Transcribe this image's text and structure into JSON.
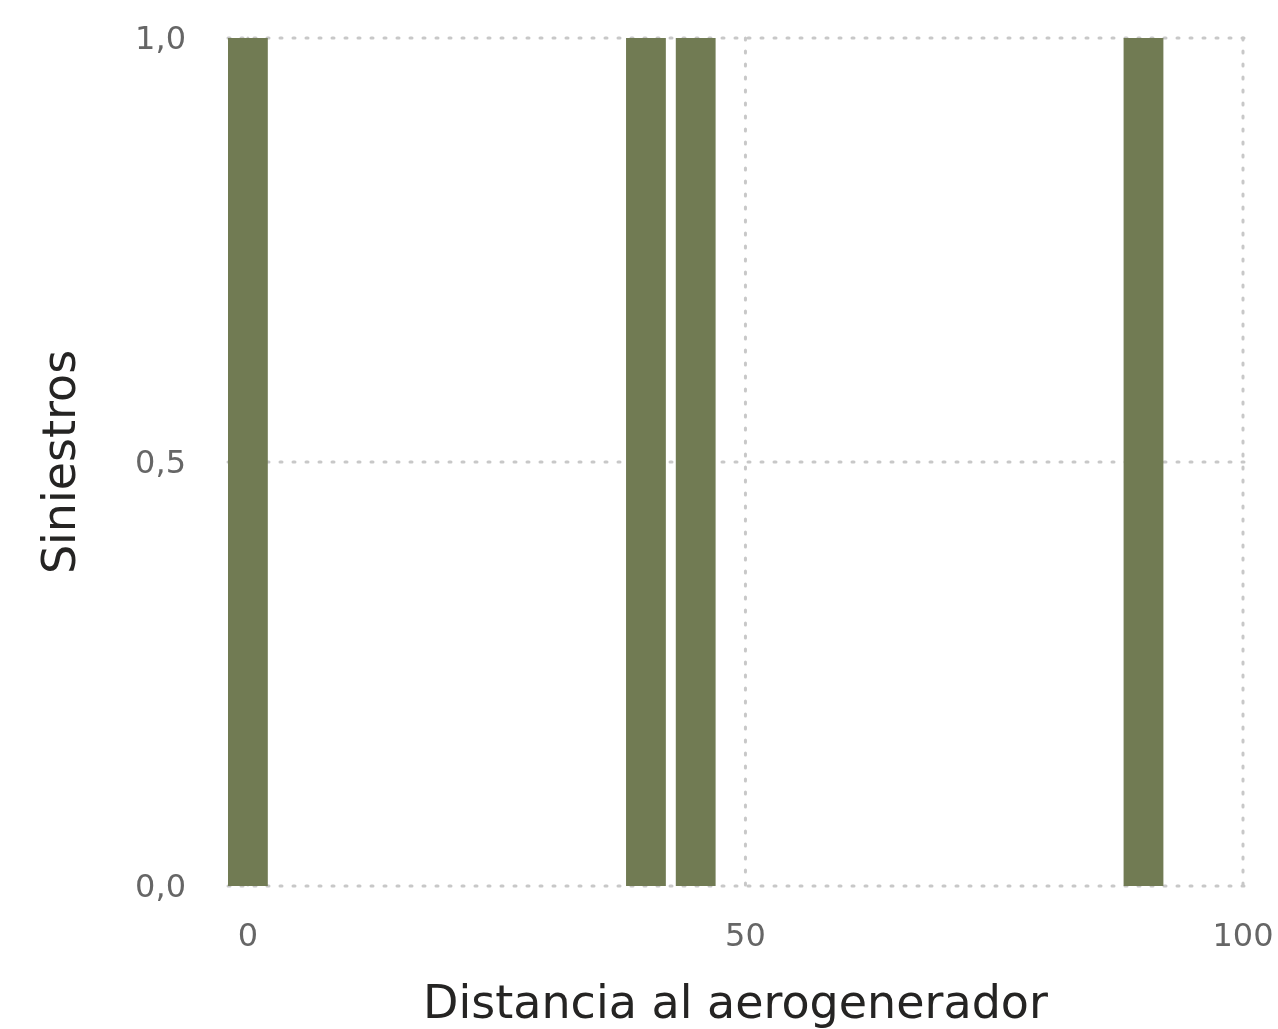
{
  "chart_data": {
    "type": "bar",
    "xlabel": "Distancia al aerogenerador",
    "ylabel": "Siniestros",
    "x": [
      0,
      40,
      45,
      90
    ],
    "values": [
      1,
      1,
      1,
      1
    ],
    "color": "#717b53",
    "xlim": [
      -2,
      100
    ],
    "xticks": [
      0,
      50,
      100
    ],
    "ylim": [
      0,
      1
    ],
    "yticks": [
      {
        "value": 0,
        "label": "0,0"
      },
      {
        "value": 0.5,
        "label": "0,5"
      },
      {
        "value": 1,
        "label": "1,0"
      }
    ],
    "grid": true
  }
}
